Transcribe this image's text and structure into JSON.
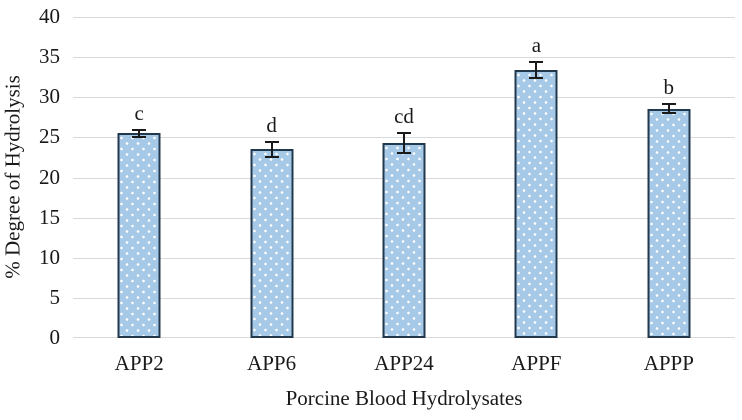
{
  "chart_data": {
    "type": "bar",
    "title": "",
    "xlabel": "Porcine Blood Hydrolysates",
    "ylabel": "% Degree of Hydrolysis",
    "categories": [
      "APP2",
      "APP6",
      "APP24",
      "APPF",
      "APPP"
    ],
    "values": [
      25.5,
      23.5,
      24.3,
      33.4,
      28.6
    ],
    "error_bars": [
      0.6,
      1.1,
      1.4,
      1.1,
      0.7
    ],
    "sig_letters": [
      "c",
      "d",
      "cd",
      "a",
      "b"
    ],
    "ylim": [
      0,
      40
    ],
    "ytick_step": 5,
    "yticks": [
      0,
      5,
      10,
      15,
      20,
      25,
      30,
      35,
      40
    ],
    "grid": true,
    "legend": "none",
    "colors": {
      "bar_fill": "#a6c9e8",
      "bar_pattern_dot": "#ffffff",
      "bar_border": "#22384c",
      "gridline": "#d9d9d9",
      "error_bar": "#1a1a1a",
      "text": "#1a1a1a"
    }
  }
}
